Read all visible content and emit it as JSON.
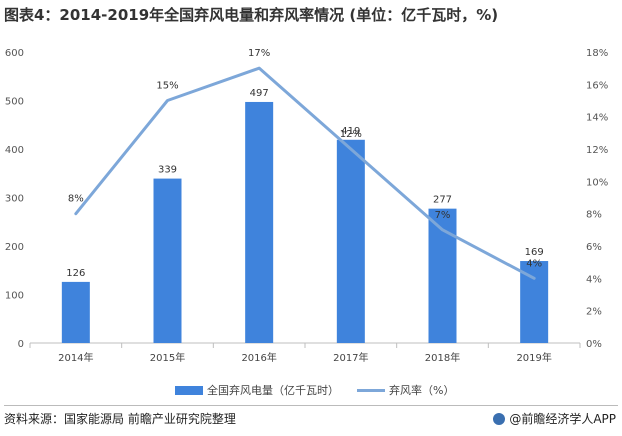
{
  "title": "图表4：2014-2019年全国弃风电量和弃风率情况 (单位：亿千瓦时，%)",
  "chart_data": {
    "type": "bar+line",
    "categories": [
      "2014年",
      "2015年",
      "2016年",
      "2017年",
      "2018年",
      "2019年"
    ],
    "series": [
      {
        "name": "全国弃风电量（亿千瓦时）",
        "type": "bar",
        "axis": "left",
        "values": [
          126,
          339,
          497,
          419,
          277,
          169
        ],
        "labels": [
          "126",
          "339",
          "497",
          "419",
          "277",
          "169"
        ]
      },
      {
        "name": "弃风率（%）",
        "type": "line",
        "axis": "right",
        "values": [
          8,
          15,
          17,
          12,
          7,
          4
        ],
        "labels": [
          "8%",
          "15%",
          "17%",
          "12%",
          "7%",
          "4%"
        ]
      }
    ],
    "y_left": {
      "ylim": [
        0,
        600
      ],
      "ticks": [
        "0",
        "100",
        "200",
        "300",
        "400",
        "500",
        "600"
      ]
    },
    "y_right": {
      "ylim": [
        0,
        18
      ],
      "ticks": [
        "0%",
        "2%",
        "4%",
        "6%",
        "8%",
        "10%",
        "12%",
        "14%",
        "16%",
        "18%"
      ]
    },
    "legend_position": "bottom",
    "grid": false,
    "colors": {
      "bar": "#3f83dc",
      "line": "#7da7d9"
    }
  },
  "source": "资料来源：国家能源局 前瞻产业研究院整理",
  "brand": "@前瞻经济学人APP"
}
